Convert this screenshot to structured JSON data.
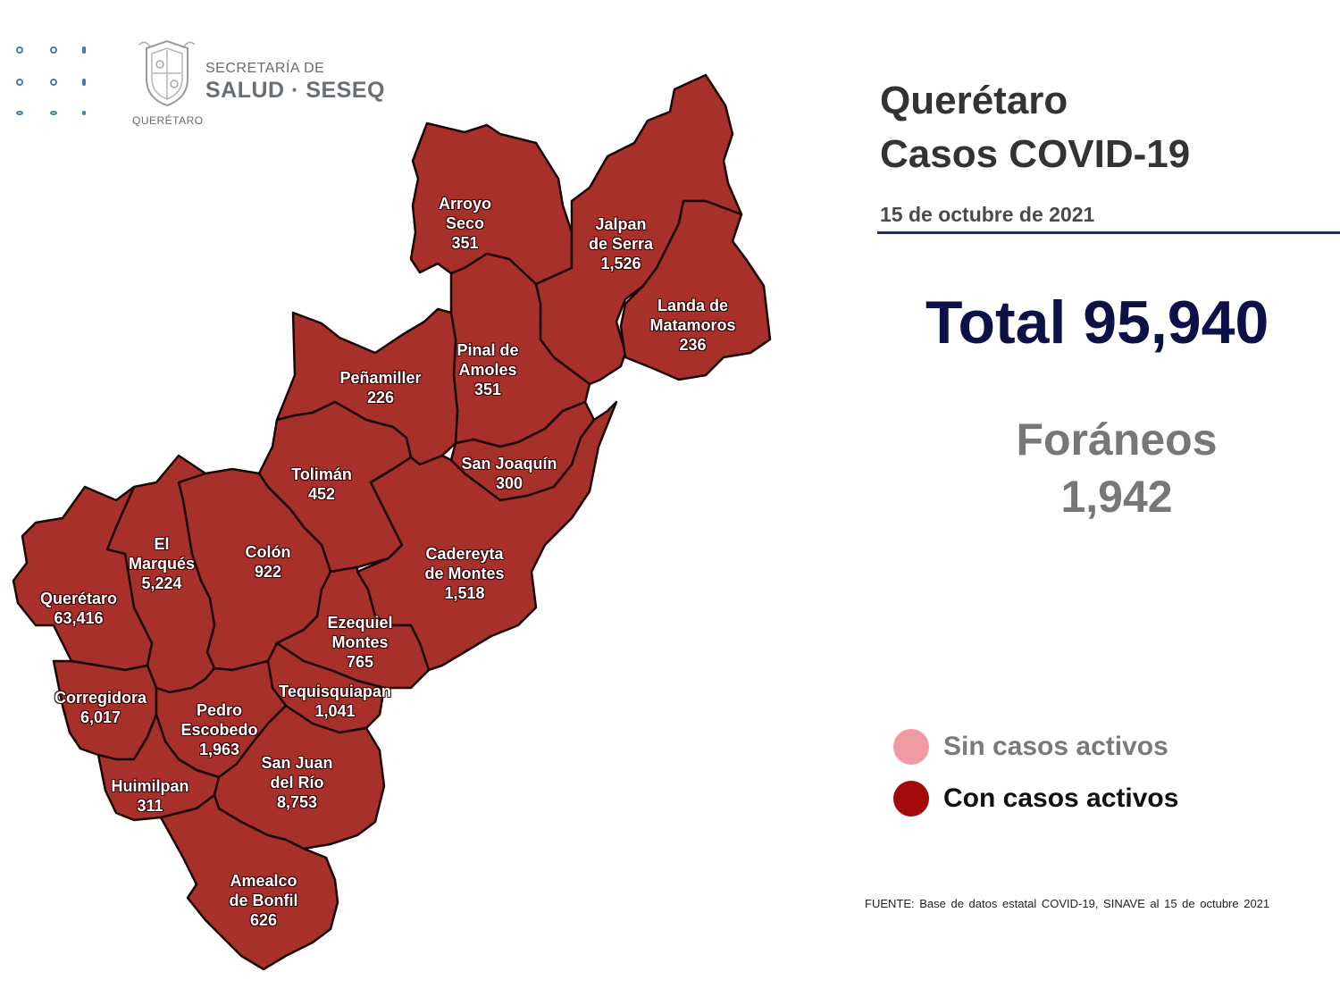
{
  "header": {
    "org_line1": "SECRETARÍA DE",
    "org_line2": "SALUD · SESEQ",
    "org_line3": "QUERÉTARO",
    "logo_icon": "state-seal-icon",
    "dots_icon": "decorative-dots-icon"
  },
  "info": {
    "title_line1": "Querétaro",
    "title_line2": "Casos COVID-19",
    "date": "15 de octubre de 2021",
    "total_text": "Total 95,940",
    "foraneos_label": "Foráneos",
    "foraneos_value": "1,942"
  },
  "legend": [
    {
      "label": "Sin casos activos",
      "color": "#f29aa2"
    },
    {
      "label": "Con casos activos",
      "color": "#a50a0a"
    }
  ],
  "source": "FUENTE: Base de datos estatal COVID-19, SINAVE al 15 de octubre 2021",
  "colors": {
    "region_fill": "#a8302b",
    "region_border": "#1a0505",
    "rule": "#1b2f6b",
    "total": "#0c1147"
  },
  "municipalities": [
    {
      "id": "arroyo-seco",
      "lines": [
        "Arroyo",
        "Seco",
        "351"
      ]
    },
    {
      "id": "jalpan-de-serra",
      "lines": [
        "Jalpan",
        "de Serra",
        "1,526"
      ]
    },
    {
      "id": "landa-de-matamoros",
      "lines": [
        "Landa de",
        "Matamoros",
        "236"
      ]
    },
    {
      "id": "pinal-de-amoles",
      "lines": [
        "Pinal de",
        "Amoles",
        "351"
      ]
    },
    {
      "id": "penamiller",
      "lines": [
        "Peñamiller",
        "226"
      ]
    },
    {
      "id": "san-joaquin",
      "lines": [
        "San Joaquín",
        "300"
      ]
    },
    {
      "id": "toliman",
      "lines": [
        "Tolimán",
        "452"
      ]
    },
    {
      "id": "cadereyta-de-montes",
      "lines": [
        "Cadereyta",
        "de Montes",
        "1,518"
      ]
    },
    {
      "id": "el-marques",
      "lines": [
        "El",
        "Marqués",
        "5,224"
      ]
    },
    {
      "id": "colon",
      "lines": [
        "Colón",
        "922"
      ]
    },
    {
      "id": "queretaro",
      "lines": [
        "Querétaro",
        "63,416"
      ]
    },
    {
      "id": "ezequiel-montes",
      "lines": [
        "Ezequiel",
        "Montes",
        "765"
      ]
    },
    {
      "id": "tequisquiapan",
      "lines": [
        "Tequisquiapan",
        "1,041"
      ]
    },
    {
      "id": "corregidora",
      "lines": [
        "Corregidora",
        "6,017"
      ]
    },
    {
      "id": "pedro-escobedo",
      "lines": [
        "Pedro",
        "Escobedo",
        "1,963"
      ]
    },
    {
      "id": "san-juan-del-rio",
      "lines": [
        "San Juan",
        "del Río",
        "8,753"
      ]
    },
    {
      "id": "huimilpan",
      "lines": [
        "Huimilpan",
        "311"
      ]
    },
    {
      "id": "amealco-de-bonfil",
      "lines": [
        "Amealco",
        "de Bonfil",
        "626"
      ]
    }
  ]
}
